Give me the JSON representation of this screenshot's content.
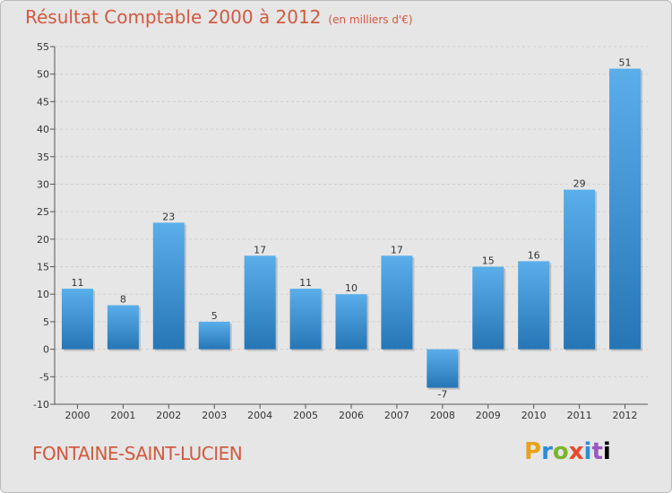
{
  "header": {
    "title": "Résultat Comptable 2000 à 2012",
    "subtitle": "(en milliers d'€)"
  },
  "footer": {
    "city": "FONTAINE-SAINT-LUCIEN",
    "logo_letters": [
      "P",
      "r",
      "o",
      "x",
      "i",
      "t",
      "i"
    ]
  },
  "colors": {
    "title": "#d05a3f",
    "bar_top": "#5aaeea",
    "bar_bottom": "#2676b6",
    "grid": "#cfcfcf",
    "background": "#e6e6e6"
  },
  "chart_data": {
    "type": "bar",
    "title": "Résultat Comptable 2000 à 2012",
    "subtitle": "(en milliers d'€)",
    "xlabel": "",
    "ylabel": "",
    "categories": [
      "2000",
      "2001",
      "2002",
      "2003",
      "2004",
      "2005",
      "2006",
      "2007",
      "2008",
      "2009",
      "2010",
      "2011",
      "2012"
    ],
    "values": [
      11,
      8,
      23,
      5,
      17,
      11,
      10,
      17,
      -7,
      15,
      16,
      29,
      51
    ],
    "ylim": [
      -10,
      55
    ],
    "yticks": [
      -10,
      -5,
      0,
      5,
      10,
      15,
      20,
      25,
      30,
      35,
      40,
      45,
      50,
      55
    ],
    "grid": true
  }
}
